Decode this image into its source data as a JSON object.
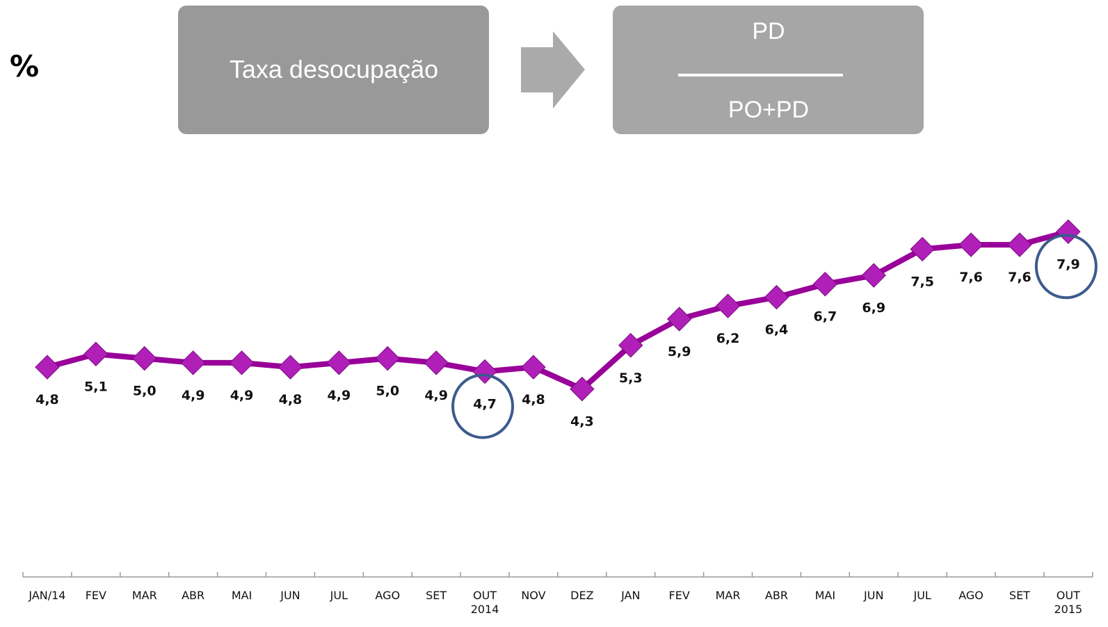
{
  "unit_label": "%",
  "definition": {
    "term": "Taxa desocupação",
    "numerator": "PD",
    "denominator": "PO+PD"
  },
  "chart_data": {
    "type": "line",
    "categories": [
      "JAN/14",
      "FEV",
      "MAR",
      "ABR",
      "MAI",
      "JUN",
      "JUL",
      "AGO",
      "SET",
      "OUT\n2014",
      "NOV",
      "DEZ",
      "JAN",
      "FEV",
      "MAR",
      "ABR",
      "MAI",
      "JUN",
      "JUL",
      "AGO",
      "SET",
      "OUT\n2015"
    ],
    "values": [
      4.8,
      5.1,
      5.0,
      4.9,
      4.9,
      4.8,
      4.9,
      5.0,
      4.9,
      4.7,
      4.8,
      4.3,
      5.3,
      5.9,
      6.2,
      6.4,
      6.7,
      6.9,
      7.5,
      7.6,
      7.6,
      7.9
    ],
    "value_labels": [
      "4,8",
      "5,1",
      "5,0",
      "4,9",
      "4,9",
      "4,8",
      "4,9",
      "5,0",
      "4,9",
      "4,7",
      "4,8",
      "4,3",
      "5,3",
      "5,9",
      "6,2",
      "6,4",
      "6,7",
      "6,9",
      "7,5",
      "7,6",
      "7,6",
      "7,9"
    ],
    "color": "#990099",
    "marker_color": "#b020b8",
    "ylim": [
      0,
      8
    ],
    "grid": false
  }
}
